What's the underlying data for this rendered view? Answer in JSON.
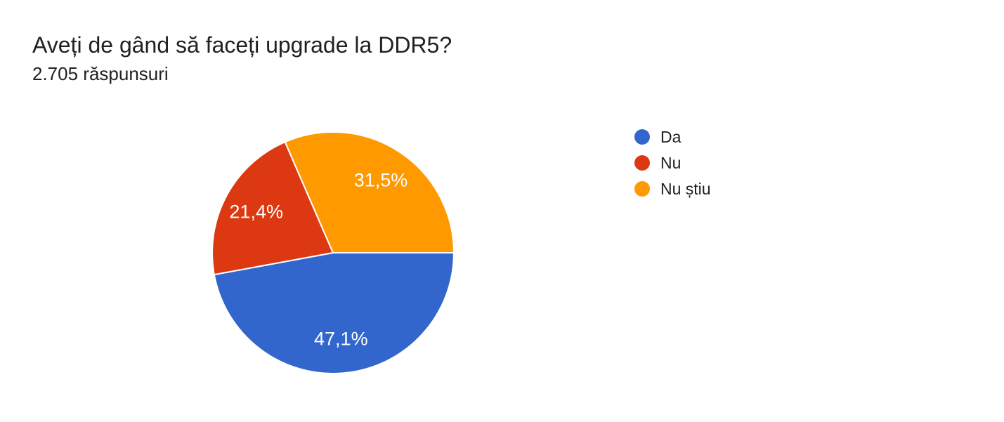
{
  "chart_data": {
    "type": "pie",
    "title": "Aveți de gând să faceți upgrade la DDR5?",
    "subtitle": "2.705 răspunsuri",
    "legend_position": "right",
    "start_angle_deg": 0,
    "angle_direction": "clockwise_from_east",
    "label_text_color": "#ffffff",
    "slice_border_color": "#ffffff",
    "slices": [
      {
        "label": "Da",
        "value_pct": 47.1,
        "display": "47,1%",
        "color": "#3366CC"
      },
      {
        "label": "Nu",
        "value_pct": 21.4,
        "display": "21,4%",
        "color": "#DC3912"
      },
      {
        "label": "Nu știu",
        "value_pct": 31.5,
        "display": "31,5%",
        "color": "#FF9900"
      }
    ]
  }
}
